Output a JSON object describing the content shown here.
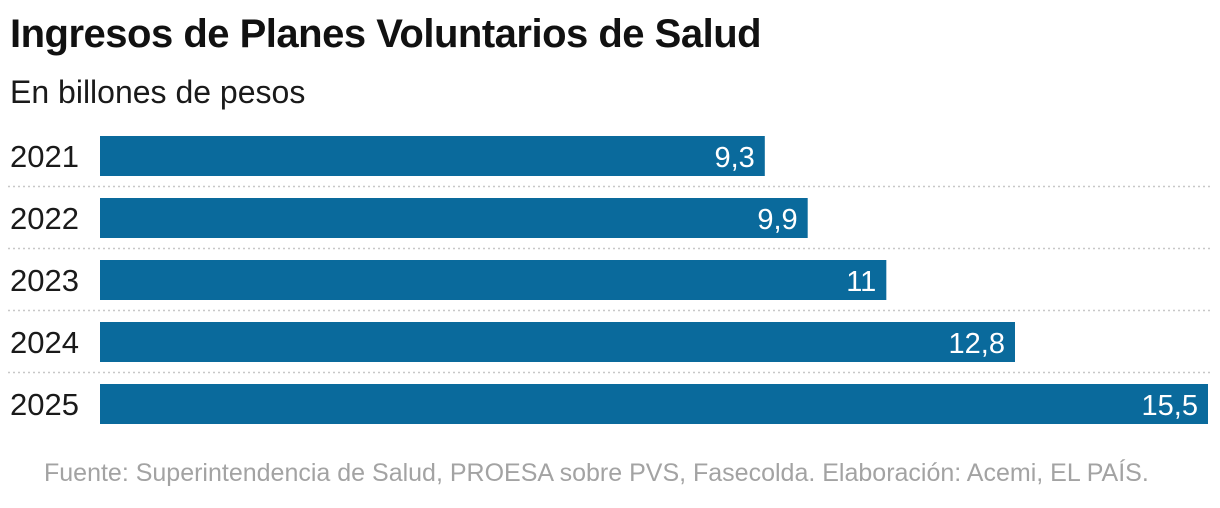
{
  "chart_data": {
    "type": "bar",
    "orientation": "horizontal",
    "title": "Ingresos de Planes Voluntarios de Salud",
    "subtitle": "En billones de pesos",
    "categories": [
      "2021",
      "2022",
      "2023",
      "2024",
      "2025"
    ],
    "values": [
      9.3,
      9.9,
      11,
      12.8,
      15.5
    ],
    "value_labels": [
      "9,3",
      "9,9",
      "11",
      "12,8",
      "15,5"
    ],
    "xlim": [
      0,
      15.5
    ],
    "xlabel": "",
    "ylabel": "",
    "grid": false,
    "legend": "none",
    "bar_color": "#0a6a9c",
    "source": "Fuente: Superintendencia de Salud, PROESA sobre PVS, Fasecolda. Elaboración: Acemi, EL PAÍS."
  },
  "colors": {
    "bar": "#0a6a9c",
    "separator": "#c8c8c8",
    "source_text": "#a3a3a3",
    "label_inside": "#ffffff"
  }
}
